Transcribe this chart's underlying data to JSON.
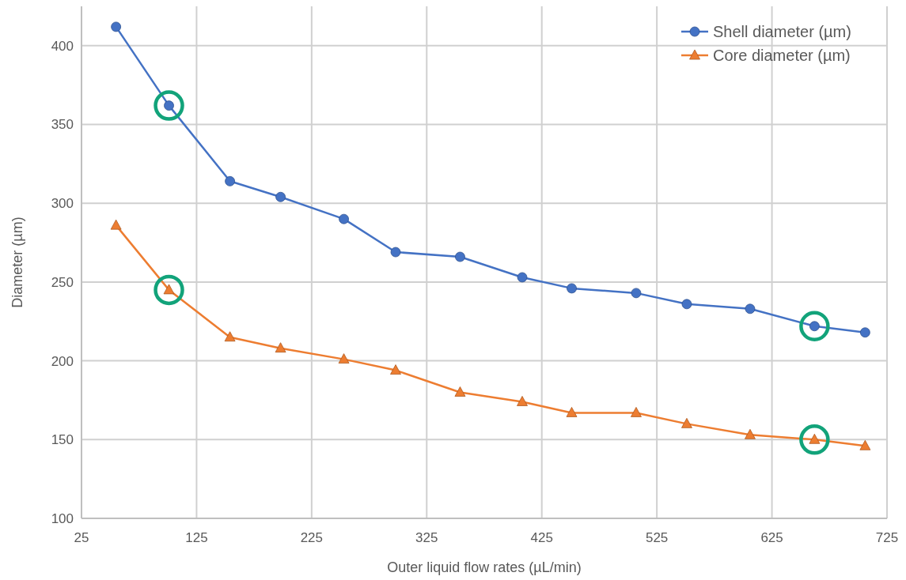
{
  "chart_data": {
    "type": "line",
    "xlabel": "Outer liquid flow rates (µL/min)",
    "ylabel": "Diameter (µm)",
    "x": [
      55,
      101,
      154,
      198,
      253,
      298,
      354,
      408,
      451,
      507,
      551,
      606,
      662,
      706
    ],
    "series": [
      {
        "name": "Shell diameter (µm)",
        "color": "#4472c4",
        "marker": "circle",
        "values": [
          412,
          362,
          314,
          304,
          290,
          269,
          266,
          253,
          246,
          243,
          236,
          233,
          222,
          218
        ]
      },
      {
        "name": "Core diameter (µm)",
        "color": "#ed7d31",
        "marker": "triangle",
        "values": [
          286,
          245,
          215,
          208,
          201,
          194,
          180,
          174,
          167,
          167,
          160,
          153,
          150,
          146
        ]
      }
    ],
    "xlim": [
      25,
      725
    ],
    "xticks": [
      25,
      125,
      225,
      325,
      425,
      525,
      625,
      725
    ],
    "ylim": [
      100,
      425
    ],
    "yticks": [
      100,
      150,
      200,
      250,
      300,
      350,
      400
    ],
    "grid": true,
    "legend": "top right"
  }
}
